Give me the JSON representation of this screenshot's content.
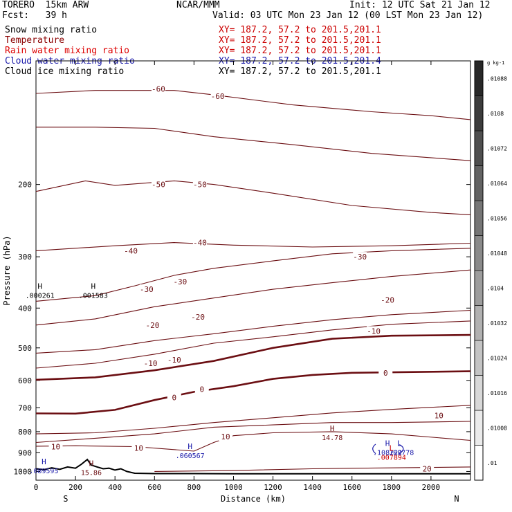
{
  "header": {
    "model": "TORERO  15km ARW",
    "center": "NCAR/MMM",
    "init": "Init: 12 UTC Sat 21 Jan 12",
    "fcst": "Fcst:   39 h",
    "valid": "Valid: 03 UTC Mon 23 Jan 12 (00 LST Mon 23 Jan 12)"
  },
  "fields": [
    {
      "name": "Snow mixing ratio",
      "xy": "XY= 187.2, 57.2 to 201.5,201.1",
      "name_color": "#000000",
      "xy_color": "#cc0000"
    },
    {
      "name": "Temperature",
      "xy": "XY= 187.2, 57.2 to 201.5,201.1",
      "name_color": "#8b0000",
      "xy_color": "#cc0000"
    },
    {
      "name": "Rain water mixing ratio",
      "xy": "XY= 187.2, 57.2 to 201.5,201.1",
      "name_color": "#dd0000",
      "xy_color": "#cc0000"
    },
    {
      "name": "Cloud water mixing ratio",
      "xy": "XY= 187.2, 57.2 to 201.5,201.4",
      "name_color": "#1a1aaa",
      "xy_color": "#1a1aaa"
    },
    {
      "name": "Cloud ice mixing ratio",
      "xy": "XY= 187.2, 57.2 to 201.5,201.1",
      "name_color": "#000000",
      "xy_color": "#000000"
    }
  ],
  "colors": {
    "temperature": "#6b0e12",
    "rain": "#cc0000",
    "cloud_water": "#1a1aaa",
    "snow": "#000000"
  },
  "chart_data": {
    "type": "contour",
    "ylabel": "Pressure (hPa)",
    "xlabel": "Distance (km)",
    "x_range": [
      0,
      2200
    ],
    "y_range": [
      1050,
      100
    ],
    "y_scale": "log",
    "x_ticks": [
      0,
      200,
      400,
      600,
      800,
      1000,
      1200,
      1400,
      1600,
      1800,
      2000
    ],
    "y_ticks": [
      200,
      300,
      400,
      500,
      600,
      700,
      800,
      900,
      1000
    ],
    "left_end_label": "S",
    "right_end_label": "N",
    "temperature_contours": [
      {
        "level": -60,
        "points": [
          [
            0,
            120
          ],
          [
            300,
            118
          ],
          [
            700,
            118
          ],
          [
            900,
            121
          ],
          [
            1300,
            128
          ],
          [
            1700,
            133
          ],
          [
            2000,
            136
          ],
          [
            2200,
            139
          ]
        ],
        "labels": [
          [
            620,
            117
          ],
          [
            920,
            122
          ]
        ]
      },
      {
        "level": -60,
        "points": [
          [
            0,
            145
          ],
          [
            300,
            145
          ],
          [
            600,
            146
          ],
          [
            900,
            153
          ],
          [
            1300,
            160
          ],
          [
            1700,
            168
          ],
          [
            2200,
            175
          ]
        ],
        "labels": []
      },
      {
        "level": -50,
        "points": [
          [
            0,
            208
          ],
          [
            250,
            196
          ],
          [
            400,
            201
          ],
          [
            700,
            196
          ],
          [
            900,
            200
          ],
          [
            1200,
            210
          ],
          [
            1600,
            225
          ],
          [
            2000,
            234
          ],
          [
            2200,
            237
          ]
        ],
        "labels": [
          [
            620,
            200
          ],
          [
            830,
            200
          ]
        ]
      },
      {
        "level": -40,
        "points": [
          [
            0,
            290
          ],
          [
            400,
            282
          ],
          [
            700,
            277
          ],
          [
            1000,
            281
          ],
          [
            1400,
            284
          ],
          [
            1800,
            282
          ],
          [
            2200,
            278
          ]
        ],
        "labels": [
          [
            480,
            290
          ],
          [
            830,
            277
          ]
        ]
      },
      {
        "level": -30,
        "points": [
          [
            0,
            385
          ],
          [
            300,
            373
          ],
          [
            500,
            353
          ],
          [
            700,
            333
          ],
          [
            900,
            320
          ],
          [
            1200,
            307
          ],
          [
            1500,
            295
          ],
          [
            1800,
            290
          ],
          [
            2200,
            286
          ]
        ],
        "labels": [
          [
            560,
            360
          ],
          [
            730,
            345
          ],
          [
            1640,
            300
          ]
        ]
      },
      {
        "level": -20,
        "points": [
          [
            0,
            440
          ],
          [
            300,
            425
          ],
          [
            600,
            397
          ],
          [
            900,
            378
          ],
          [
            1200,
            360
          ],
          [
            1500,
            347
          ],
          [
            1800,
            335
          ],
          [
            2200,
            323
          ]
        ],
        "labels": [
          [
            590,
            440
          ],
          [
            820,
            420
          ],
          [
            1780,
            382
          ]
        ]
      },
      {
        "level": -10,
        "points": [
          [
            0,
            560
          ],
          [
            300,
            545
          ],
          [
            600,
            518
          ],
          [
            900,
            487
          ],
          [
            1200,
            470
          ],
          [
            1500,
            452
          ],
          [
            1800,
            438
          ],
          [
            2200,
            430
          ]
        ],
        "labels": [
          [
            580,
            545
          ],
          [
            700,
            535
          ],
          [
            1710,
            455
          ]
        ]
      },
      {
        "level": -10,
        "points": [
          [
            0,
            515
          ],
          [
            300,
            505
          ],
          [
            600,
            480
          ],
          [
            900,
            462
          ],
          [
            1200,
            443
          ],
          [
            1500,
            427
          ],
          [
            1800,
            415
          ],
          [
            2200,
            405
          ]
        ],
        "labels": []
      },
      {
        "level": 0,
        "points": [
          [
            0,
            598
          ],
          [
            300,
            590
          ],
          [
            600,
            567
          ],
          [
            900,
            538
          ],
          [
            1200,
            500
          ],
          [
            1500,
            475
          ],
          [
            1800,
            467
          ],
          [
            2200,
            465
          ]
        ],
        "labels": []
      },
      {
        "level": 0,
        "points": [
          [
            0,
            722
          ],
          [
            200,
            723
          ],
          [
            400,
            708
          ],
          [
            600,
            670
          ],
          [
            800,
            640
          ],
          [
            1000,
            620
          ],
          [
            1200,
            595
          ],
          [
            1400,
            582
          ],
          [
            1600,
            575
          ],
          [
            2200,
            570
          ]
        ],
        "labels": [
          [
            700,
            660
          ],
          [
            840,
            630
          ],
          [
            1770,
            575
          ]
        ]
      },
      {
        "level": 10,
        "points": [
          [
            0,
            810
          ],
          [
            300,
            805
          ],
          [
            600,
            785
          ],
          [
            900,
            760
          ],
          [
            1200,
            740
          ],
          [
            1500,
            720
          ],
          [
            1800,
            706
          ],
          [
            2200,
            690
          ]
        ],
        "labels": []
      },
      {
        "level": 10,
        "points": [
          [
            0,
            850
          ],
          [
            300,
            830
          ],
          [
            600,
            810
          ],
          [
            900,
            780
          ],
          [
            1200,
            770
          ],
          [
            1500,
            760
          ],
          [
            1800,
            760
          ],
          [
            2200,
            755
          ]
        ],
        "labels": [
          [
            2040,
            730
          ]
        ]
      },
      {
        "level": 10,
        "points": [
          [
            0,
            868
          ],
          [
            200,
            866
          ],
          [
            500,
            870
          ],
          [
            800,
            892
          ],
          [
            900,
            850
          ],
          [
            1000,
            818
          ],
          [
            1200,
            805
          ],
          [
            1500,
            800
          ],
          [
            1800,
            810
          ],
          [
            2200,
            840
          ]
        ],
        "labels": [
          [
            100,
            870
          ],
          [
            520,
            877
          ],
          [
            960,
            823
          ]
        ]
      },
      {
        "level": 20,
        "points": [
          [
            600,
            1000
          ],
          [
            1000,
            995
          ],
          [
            1400,
            985
          ],
          [
            1800,
            980
          ],
          [
            2200,
            975
          ]
        ],
        "labels": [
          [
            1980,
            985
          ]
        ]
      }
    ],
    "extrema": [
      {
        "type": "H",
        "field": "snow",
        "value": ".000261",
        "x": 20,
        "y": 365
      },
      {
        "type": "H",
        "field": "snow",
        "value": ".001583",
        "x": 290,
        "y": 365
      },
      {
        "type": "H",
        "field": "temperature",
        "value": "14.78",
        "x": 1500,
        "y": 810
      },
      {
        "type": "H",
        "field": "cloud_water",
        "value": ".060567",
        "x": 780,
        "y": 895
      },
      {
        "type": "H",
        "field": "cloud_water",
        "value": ".108222",
        "x": 1780,
        "y": 880
      },
      {
        "type": "L",
        "field": "cloud_water",
        "value": ".160778",
        "x": 1840,
        "y": 880
      },
      {
        "type": "L",
        "field": "rain",
        "value": ".007894",
        "x": 1800,
        "y": 905
      },
      {
        "type": "H",
        "field": "cloud_water",
        "value": ".089595",
        "x": 40,
        "y": 975
      },
      {
        "type": "H",
        "field": "temperature",
        "value": "15.86",
        "x": 280,
        "y": 985
      }
    ],
    "colorbar": {
      "unit": "g kg-1",
      "labels": [
        ".01",
        ".01008",
        ".01016",
        ".01024",
        ".01032",
        ".0104",
        ".01048",
        ".01056",
        ".01064",
        ".01072",
        ".0108",
        ".01088"
      ]
    }
  }
}
